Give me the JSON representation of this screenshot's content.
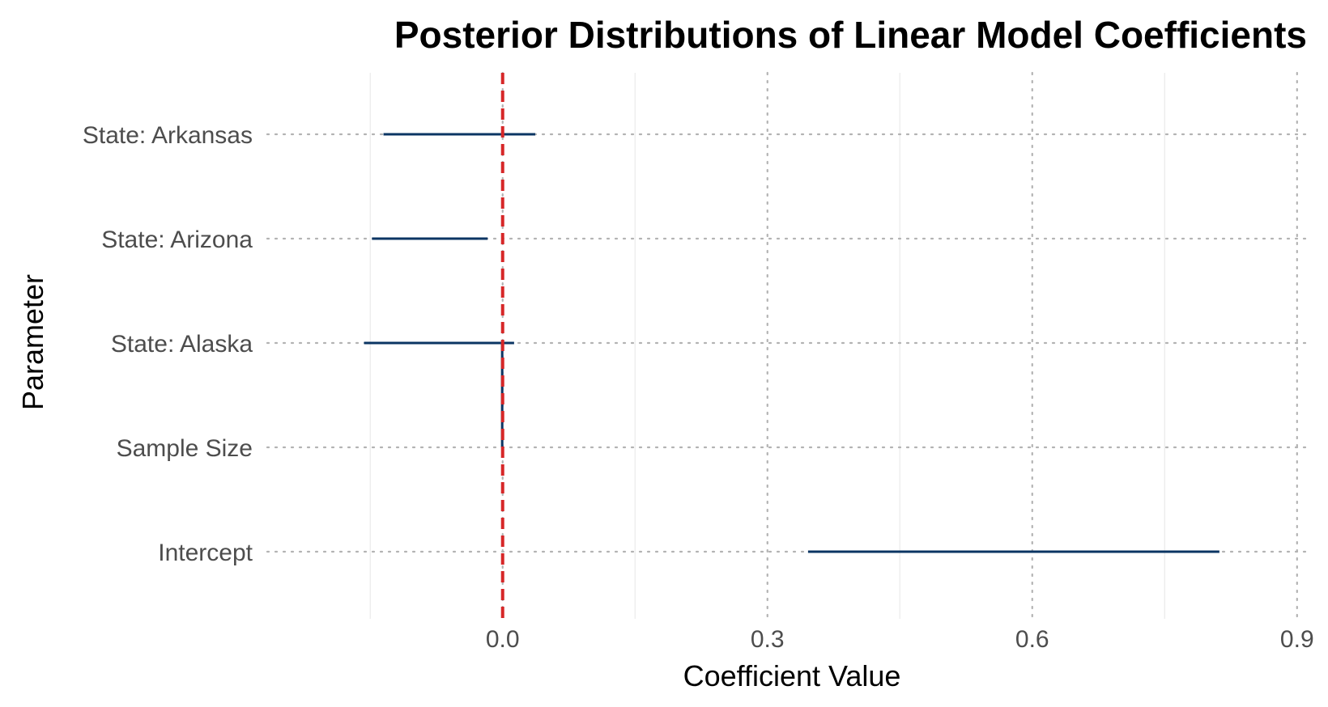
{
  "chart_data": {
    "type": "interval",
    "title": "Posterior Distributions of Linear Model Coefficients",
    "xlabel": "Coefficient Value",
    "ylabel": "Parameter",
    "xlim": [
      -0.2667,
      0.9167
    ],
    "x_ticks": [
      {
        "value": 0.0,
        "label": "0.0"
      },
      {
        "value": 0.3,
        "label": "0.3"
      },
      {
        "value": 0.6,
        "label": "0.6"
      },
      {
        "value": 0.9,
        "label": "0.9"
      }
    ],
    "x_minor_gridlines": [
      -0.15,
      0.15,
      0.45,
      0.75
    ],
    "reference_line": {
      "x": 0,
      "style": "dashed",
      "color": "#d62728"
    },
    "interval_color": "#0b3563",
    "grid": true,
    "parameters": [
      "Intercept",
      "Sample Size",
      "State: Alaska",
      "State: Arizona",
      "State: Arkansas"
    ],
    "intervals": [
      {
        "parameter": "Intercept",
        "low": 0.346,
        "high": 0.812
      },
      {
        "parameter": "Sample Size",
        "low": -0.0005,
        "high": 0.0005
      },
      {
        "parameter": "State: Alaska",
        "low": -0.157,
        "high": 0.013
      },
      {
        "parameter": "State: Arizona",
        "low": -0.148,
        "high": -0.017
      },
      {
        "parameter": "State: Arkansas",
        "low": -0.135,
        "high": 0.037
      }
    ]
  }
}
